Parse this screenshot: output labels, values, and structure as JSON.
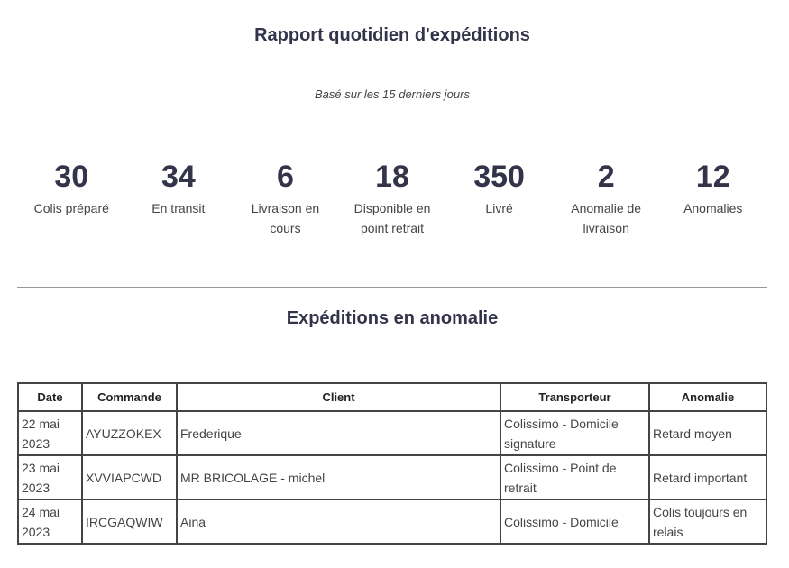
{
  "header": {
    "title": "Rapport quotidien d'expéditions",
    "subtitle": "Basé sur les 15 derniers jours"
  },
  "stats": [
    {
      "value": "30",
      "label": "Colis préparé"
    },
    {
      "value": "34",
      "label": "En transit"
    },
    {
      "value": "6",
      "label": "Livraison en cours"
    },
    {
      "value": "18",
      "label": "Disponible en point retrait"
    },
    {
      "value": "350",
      "label": "Livré"
    },
    {
      "value": "2",
      "label": "Anomalie de livraison"
    },
    {
      "value": "12",
      "label": "Anomalies"
    }
  ],
  "anomalies": {
    "title": "Expéditions en anomalie",
    "columns": [
      "Date",
      "Commande",
      "Client",
      "Transporteur",
      "Anomalie"
    ],
    "rows": [
      [
        "22 mai 2023",
        "AYUZZOKEX",
        "Frederique",
        "Colissimo - Domicile signature",
        "Retard moyen"
      ],
      [
        "23 mai 2023",
        "XVVIAPCWD",
        "MR BRICOLAGE - michel",
        "Colissimo - Point de retrait",
        "Retard important"
      ],
      [
        "24 mai 2023",
        "IRCGAQWIW",
        "Aina",
        "Colissimo - Domicile",
        "Colis toujours en relais"
      ]
    ]
  }
}
